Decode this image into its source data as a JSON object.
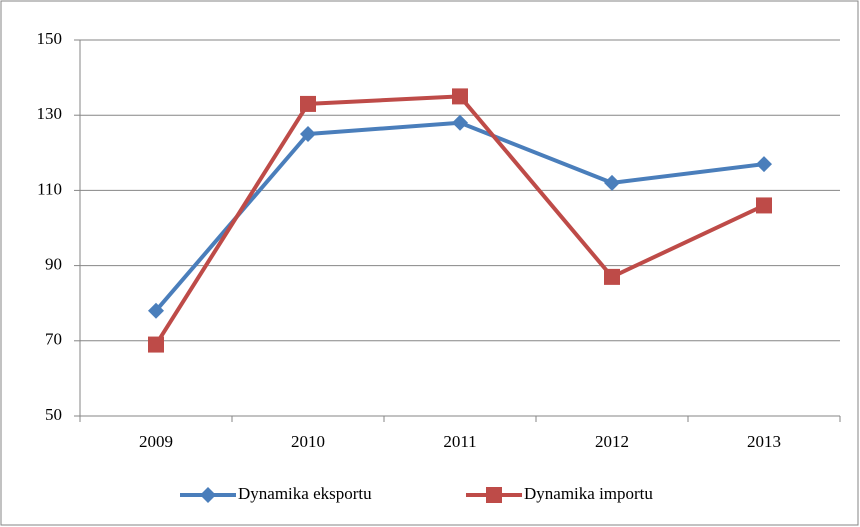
{
  "chart_data": {
    "type": "line",
    "categories": [
      "2009",
      "2010",
      "2011",
      "2012",
      "2013"
    ],
    "series": [
      {
        "name": "Dynamika eksportu",
        "color": "#4a7ebb",
        "marker": "diamond",
        "values": [
          78,
          125,
          128,
          112,
          117
        ]
      },
      {
        "name": "Dynamika importu",
        "color": "#be4b48",
        "marker": "square",
        "values": [
          69,
          133,
          135,
          87,
          106
        ]
      }
    ],
    "ylim": [
      50,
      150
    ],
    "yticks": [
      50,
      70,
      90,
      110,
      130,
      150
    ],
    "grid": true,
    "legend": "bottom"
  }
}
